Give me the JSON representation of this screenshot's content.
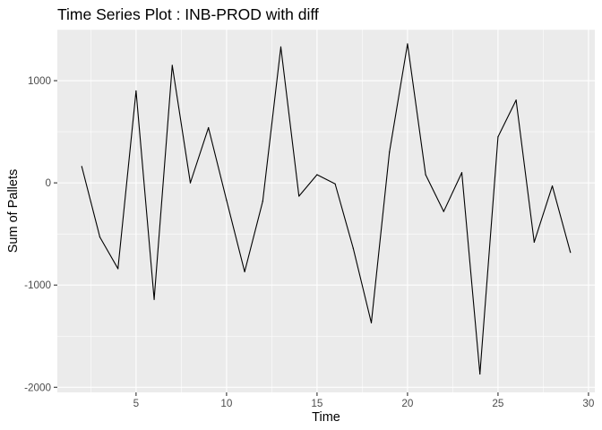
{
  "chart_data": {
    "type": "line",
    "title": "Time Series Plot : INB-PROD with diff",
    "xlabel": "Time",
    "ylabel": "Sum of Pallets",
    "x": [
      2,
      3,
      4,
      5,
      6,
      7,
      8,
      9,
      10,
      11,
      12,
      13,
      14,
      15,
      16,
      17,
      18,
      19,
      20,
      21,
      22,
      23,
      24,
      25,
      26,
      27,
      28,
      29
    ],
    "series": [
      {
        "values": [
          160,
          -530,
          -840,
          900,
          -1140,
          1150,
          0,
          540,
          -170,
          -870,
          -180,
          1330,
          -130,
          80,
          -10,
          -640,
          -1370,
          300,
          1360,
          80,
          -280,
          100,
          -1870,
          450,
          810,
          -580,
          -30,
          -680
        ]
      }
    ],
    "xlim": [
      0.65,
      30.35
    ],
    "ylim": [
      -2050,
      1500
    ],
    "x_ticks": [
      5,
      10,
      15,
      20,
      25,
      30
    ],
    "y_ticks": [
      -2000,
      -1000,
      0,
      1000
    ],
    "grid": true,
    "legend": "none",
    "colors": {
      "panel_background": "#ebebeb",
      "grid": "#ffffff",
      "line": "#000000",
      "tick_text": "#4d4d4d"
    }
  }
}
